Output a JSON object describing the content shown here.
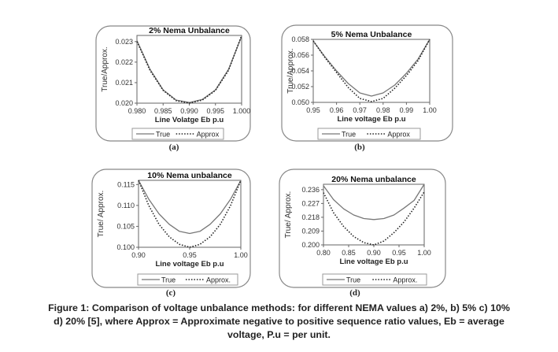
{
  "figure": {
    "caption_lines": [
      "Figure 1: Comparison of voltage unbalance methods: for different NEMA values a) 2%, b) 5% c) 10%",
      "d) 20% [5], where Approx = Approximate negative to positive sequence ratio values, Eb = average",
      "voltage, P.u = per unit."
    ]
  },
  "chart_data": [
    {
      "type": "line",
      "panel_label": "(a)",
      "title": "2% Nema Unbalance",
      "xlabel": "Line Volatge Eb p.u",
      "ylabel": "True/Approx.",
      "xlim": [
        0.98,
        1.0
      ],
      "ylim": [
        0.02,
        0.0233
      ],
      "xticks": [
        "0.980",
        "0.985",
        "0.990",
        "0.995",
        "1.000"
      ],
      "xtick_values": [
        0.98,
        0.985,
        0.99,
        0.995,
        1.0
      ],
      "yticks": [
        "0.020",
        "0.021",
        "0.022",
        "0.023"
      ],
      "ytick_values": [
        0.02,
        0.021,
        0.022,
        0.023
      ],
      "grid": false,
      "legend": "bottom",
      "x": [
        0.98,
        0.9825,
        0.985,
        0.9875,
        0.99,
        0.9925,
        0.995,
        0.9975,
        1.0
      ],
      "series": [
        {
          "name": "True",
          "style": "solid",
          "values": [
            0.02305,
            0.02165,
            0.02065,
            0.02015,
            0.02003,
            0.02018,
            0.02065,
            0.02165,
            0.02325
          ]
        },
        {
          "name": "Approx",
          "style": "dotted",
          "values": [
            0.023,
            0.0216,
            0.02062,
            0.02012,
            0.02,
            0.02015,
            0.02062,
            0.0216,
            0.0233
          ]
        }
      ]
    },
    {
      "type": "line",
      "panel_label": "(b)",
      "title": "5% Nema Unbalance",
      "xlabel": "Line voltage Eb   p.u",
      "ylabel": "True/Approx.",
      "xlim": [
        0.95,
        1.0
      ],
      "ylim": [
        0.05,
        0.058
      ],
      "xticks": [
        "0.95",
        "0.96",
        "0.97",
        "0.98",
        "0.99",
        "1.00"
      ],
      "xtick_values": [
        0.95,
        0.96,
        0.97,
        0.98,
        0.99,
        1.0
      ],
      "yticks": [
        "0.050",
        "0.052",
        "0.054",
        "0.056",
        "0.058"
      ],
      "ytick_values": [
        0.05,
        0.052,
        0.054,
        0.056,
        0.058
      ],
      "grid": false,
      "legend": "bottom",
      "x": [
        0.95,
        0.955,
        0.96,
        0.965,
        0.97,
        0.975,
        0.98,
        0.985,
        0.99,
        0.995,
        1.0
      ],
      "series": [
        {
          "name": "True",
          "style": "solid",
          "values": [
            0.0578,
            0.0558,
            0.054,
            0.0524,
            0.0512,
            0.0508,
            0.0512,
            0.0522,
            0.0537,
            0.0555,
            0.058
          ]
        },
        {
          "name": "Approx",
          "style": "dotted",
          "values": [
            0.0578,
            0.0557,
            0.0538,
            0.0519,
            0.0505,
            0.0501,
            0.0505,
            0.0518,
            0.0534,
            0.0553,
            0.058
          ]
        }
      ]
    },
    {
      "type": "line",
      "panel_label": "(c)",
      "title": "10% Nema unbalance",
      "xlabel": "Line voltage Eb   p.u",
      "ylabel": "True/ Approx.",
      "xlim": [
        0.9,
        1.0
      ],
      "ylim": [
        0.1,
        0.116
      ],
      "xticks": [
        "0.90",
        "0.95",
        "1.00"
      ],
      "xtick_values": [
        0.9,
        0.95,
        1.0
      ],
      "yticks": [
        "0.100",
        "0.105",
        "0.110",
        "0.115"
      ],
      "ytick_values": [
        0.1,
        0.105,
        0.11,
        0.115
      ],
      "grid": false,
      "legend": "bottom",
      "x": [
        0.9,
        0.91,
        0.92,
        0.93,
        0.94,
        0.95,
        0.96,
        0.97,
        0.98,
        0.99,
        1.0
      ],
      "series": [
        {
          "name": "True",
          "style": "solid",
          "values": [
            0.116,
            0.1115,
            0.108,
            0.1055,
            0.1038,
            0.1033,
            0.1038,
            0.1055,
            0.108,
            0.1115,
            0.116
          ]
        },
        {
          "name": "Approx.",
          "style": "dotted",
          "values": [
            0.116,
            0.11,
            0.1055,
            0.1025,
            0.1007,
            0.1,
            0.1007,
            0.1025,
            0.1055,
            0.11,
            0.116
          ]
        }
      ]
    },
    {
      "type": "line",
      "panel_label": "(d)",
      "title": "20% Nema unbalance",
      "xlabel": "Line voltage Eb   p.u",
      "ylabel": "True/ Approx.",
      "xlim": [
        0.8,
        1.0
      ],
      "ylim": [
        0.2,
        0.2395
      ],
      "xticks": [
        "0.80",
        "0.85",
        "0.90",
        "0.95",
        "1.00"
      ],
      "xtick_values": [
        0.8,
        0.85,
        0.9,
        0.95,
        1.0
      ],
      "yticks": [
        "0.200",
        "0.209",
        "0.218",
        "0.227",
        "0.236"
      ],
      "ytick_values": [
        0.2,
        0.209,
        0.218,
        0.227,
        0.236
      ],
      "grid": false,
      "legend": "bottom",
      "x": [
        0.8,
        0.82,
        0.84,
        0.86,
        0.88,
        0.9,
        0.92,
        0.94,
        0.96,
        0.98,
        1.0
      ],
      "series": [
        {
          "name": "True",
          "style": "solid",
          "values": [
            0.2385,
            0.2295,
            0.2235,
            0.2195,
            0.2172,
            0.2165,
            0.2172,
            0.2195,
            0.224,
            0.229,
            0.2395
          ]
        },
        {
          "name": "Approx.",
          "style": "dotted",
          "values": [
            0.234,
            0.221,
            0.212,
            0.2055,
            0.2015,
            0.2,
            0.2025,
            0.208,
            0.215,
            0.224,
            0.2345
          ]
        }
      ]
    }
  ]
}
